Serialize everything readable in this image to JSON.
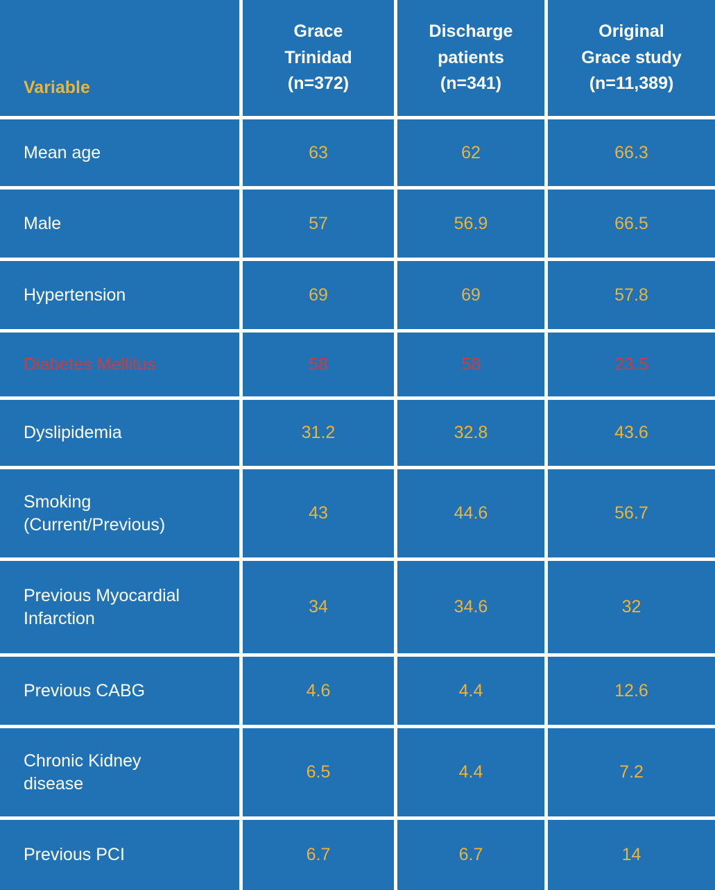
{
  "table": {
    "header": {
      "variable_label": "Variable",
      "columns": [
        "Grace\nTrinidad\n(n=372)",
        "Discharge\npatients\n(n=341)",
        "Original\nGrace study\n(n=11,389)"
      ]
    },
    "row_labels": [
      "Mean age",
      "Male",
      "Hypertension",
      "Diabetes Mellitus",
      "Dyslipidemia",
      "Smoking\n(Current/Previous)",
      "Previous Myocardial\nInfarction",
      "Previous CABG",
      "Chronic Kidney\ndisease",
      "Previous PCI"
    ]
  },
  "chart_data": {
    "type": "table",
    "title": "",
    "columns": [
      "Variable",
      "Grace Trinidad (n=372)",
      "Discharge patients (n=341)",
      "Original Grace study (n=11,389)"
    ],
    "rows": [
      [
        "Mean age",
        63,
        62,
        66.3
      ],
      [
        "Male",
        57,
        56.9,
        66.5
      ],
      [
        "Hypertension",
        69,
        69,
        57.8
      ],
      [
        "Diabetes Mellitus",
        58,
        58,
        23.5
      ],
      [
        "Dyslipidemia",
        31.2,
        32.8,
        43.6
      ],
      [
        "Smoking (Current/Previous)",
        43,
        44.6,
        56.7
      ],
      [
        "Previous Myocardial Infarction",
        34,
        34.6,
        32
      ],
      [
        "Previous CABG",
        4.6,
        4.4,
        12.6
      ],
      [
        "Chronic Kidney disease",
        6.5,
        4.4,
        7.2
      ],
      [
        "Previous PCI",
        6.7,
        6.7,
        14
      ]
    ],
    "highlighted_row": "Diabetes Mellitus",
    "highlight_color": "#ce3a3e",
    "layout_hints": {
      "grid": "on",
      "gridline_color": "#ffffff",
      "value_alignment": "center",
      "label_alignment": "left"
    }
  },
  "colors": {
    "background_blue": "#2072b4",
    "gridline_white": "#ffffff",
    "value_yellow": "#edb43a",
    "highlight_red": "#ce3a3e",
    "label_white": "#ffffff"
  }
}
